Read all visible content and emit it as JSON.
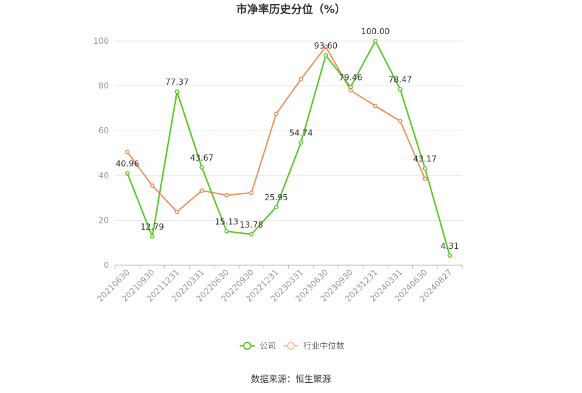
{
  "chart_data": {
    "type": "line",
    "title": "市净率历史分位（%）",
    "categories": [
      "20210630",
      "20210930",
      "20211231",
      "20220331",
      "20220630",
      "20220930",
      "20221231",
      "20230331",
      "20230630",
      "20230930",
      "20231231",
      "20240331",
      "20240630",
      "20240827"
    ],
    "series": [
      {
        "name": "公司",
        "color": "#5fc72a",
        "values": [
          40.96,
          12.79,
          77.37,
          43.67,
          15.13,
          13.78,
          25.95,
          54.74,
          93.6,
          79.46,
          100.0,
          78.47,
          43.17,
          4.31
        ],
        "labels": [
          "40.96",
          "12.79",
          "77.37",
          "43.67",
          "15.13",
          "13.78",
          "25.95",
          "54.74",
          "93.60",
          "79.46",
          "100.00",
          "78.47",
          "43.17",
          "4.31"
        ]
      },
      {
        "name": "行业中位数",
        "color": "#f0905a",
        "values": [
          50.5,
          35.5,
          23.8,
          33.3,
          31.2,
          32.3,
          67.5,
          83.0,
          97.5,
          78.0,
          71.0,
          64.3,
          38.5,
          null
        ]
      }
    ],
    "yticks": [
      "0",
      "20",
      "40",
      "60",
      "80",
      "100"
    ],
    "ylim": [
      0,
      100
    ],
    "grid": true,
    "legend": "bottom-center",
    "source": "数据来源：恒生聚源"
  }
}
